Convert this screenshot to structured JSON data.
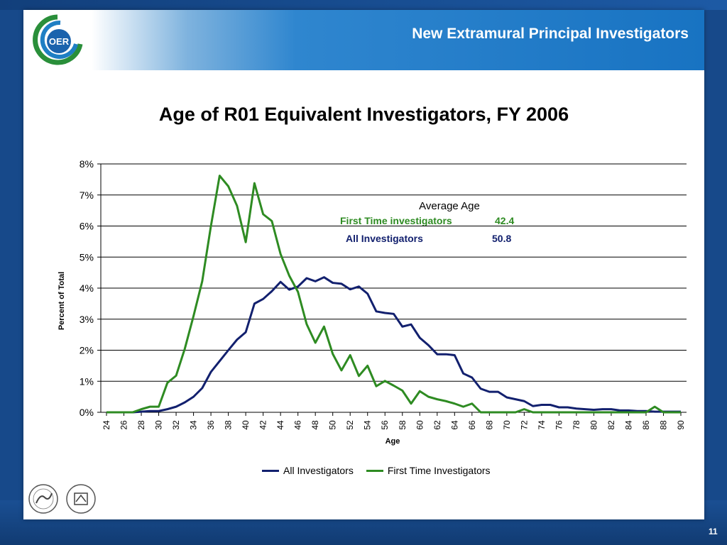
{
  "header": {
    "title": "New Extramural Principal Investigators",
    "logo_text": "OER"
  },
  "footer": {
    "page_number": "11"
  },
  "colors": {
    "all": "#12206e",
    "first": "#2e8b22",
    "header_blue": "#1873c2"
  },
  "annotation": {
    "title": "Average Age",
    "first_label": "First Time investigators",
    "first_value": "42.4",
    "all_label": "All Investigators",
    "all_value": "50.8"
  },
  "chart_data": {
    "type": "line",
    "title": "Age of R01 Equivalent Investigators, FY 2006",
    "xlabel": "Age",
    "ylabel": "Percent of Total",
    "ylim": [
      0,
      8
    ],
    "yticks": [
      "0%",
      "1%",
      "2%",
      "3%",
      "4%",
      "5%",
      "6%",
      "7%",
      "8%"
    ],
    "xticks": [
      24,
      26,
      28,
      30,
      32,
      34,
      36,
      38,
      40,
      42,
      44,
      46,
      48,
      50,
      52,
      54,
      56,
      58,
      60,
      62,
      64,
      66,
      68,
      70,
      72,
      74,
      76,
      78,
      80,
      82,
      84,
      86,
      88,
      90
    ],
    "grid": true,
    "legend_position": "bottom",
    "x": [
      24,
      25,
      26,
      27,
      28,
      29,
      30,
      31,
      32,
      33,
      34,
      35,
      36,
      37,
      38,
      39,
      40,
      41,
      42,
      43,
      44,
      45,
      46,
      47,
      48,
      49,
      50,
      51,
      52,
      53,
      54,
      55,
      56,
      57,
      58,
      59,
      60,
      61,
      62,
      63,
      64,
      65,
      66,
      67,
      68,
      69,
      70,
      71,
      72,
      73,
      74,
      75,
      76,
      77,
      78,
      79,
      80,
      81,
      82,
      83,
      84,
      85,
      86,
      87,
      88,
      89,
      90
    ],
    "series": [
      {
        "name": "All Investigators",
        "values": [
          0,
          0,
          0,
          0,
          0.02,
          0.04,
          0.04,
          0.1,
          0.18,
          0.32,
          0.5,
          0.78,
          1.3,
          1.65,
          2.0,
          2.34,
          2.58,
          3.5,
          3.65,
          3.9,
          4.2,
          3.95,
          4.05,
          4.32,
          4.22,
          4.35,
          4.17,
          4.14,
          3.96,
          4.05,
          3.82,
          3.25,
          3.2,
          3.17,
          2.76,
          2.83,
          2.4,
          2.16,
          1.87,
          1.87,
          1.84,
          1.25,
          1.12,
          0.76,
          0.66,
          0.66,
          0.48,
          0.42,
          0.36,
          0.2,
          0.24,
          0.24,
          0.16,
          0.16,
          0.12,
          0.1,
          0.08,
          0.1,
          0.1,
          0.06,
          0.06,
          0.04,
          0.04,
          0.02,
          0.02,
          0.02,
          0.02
        ]
      },
      {
        "name": "First Time Investigators",
        "values": [
          0,
          0,
          0,
          0,
          0.1,
          0.18,
          0.18,
          0.95,
          1.18,
          2.05,
          3.1,
          4.22,
          6.0,
          7.62,
          7.28,
          6.65,
          5.48,
          7.38,
          6.38,
          6.16,
          5.1,
          4.4,
          3.88,
          2.84,
          2.24,
          2.76,
          1.88,
          1.35,
          1.84,
          1.17,
          1.5,
          0.84,
          1.01,
          0.86,
          0.7,
          0.28,
          0.68,
          0.5,
          0.42,
          0.36,
          0.28,
          0.18,
          0.28,
          0,
          0,
          0,
          0,
          0,
          0.1,
          0,
          0,
          0,
          0,
          0,
          0,
          0,
          0,
          0,
          0,
          0,
          0,
          0,
          0,
          0.18,
          0,
          0,
          0
        ]
      }
    ]
  }
}
